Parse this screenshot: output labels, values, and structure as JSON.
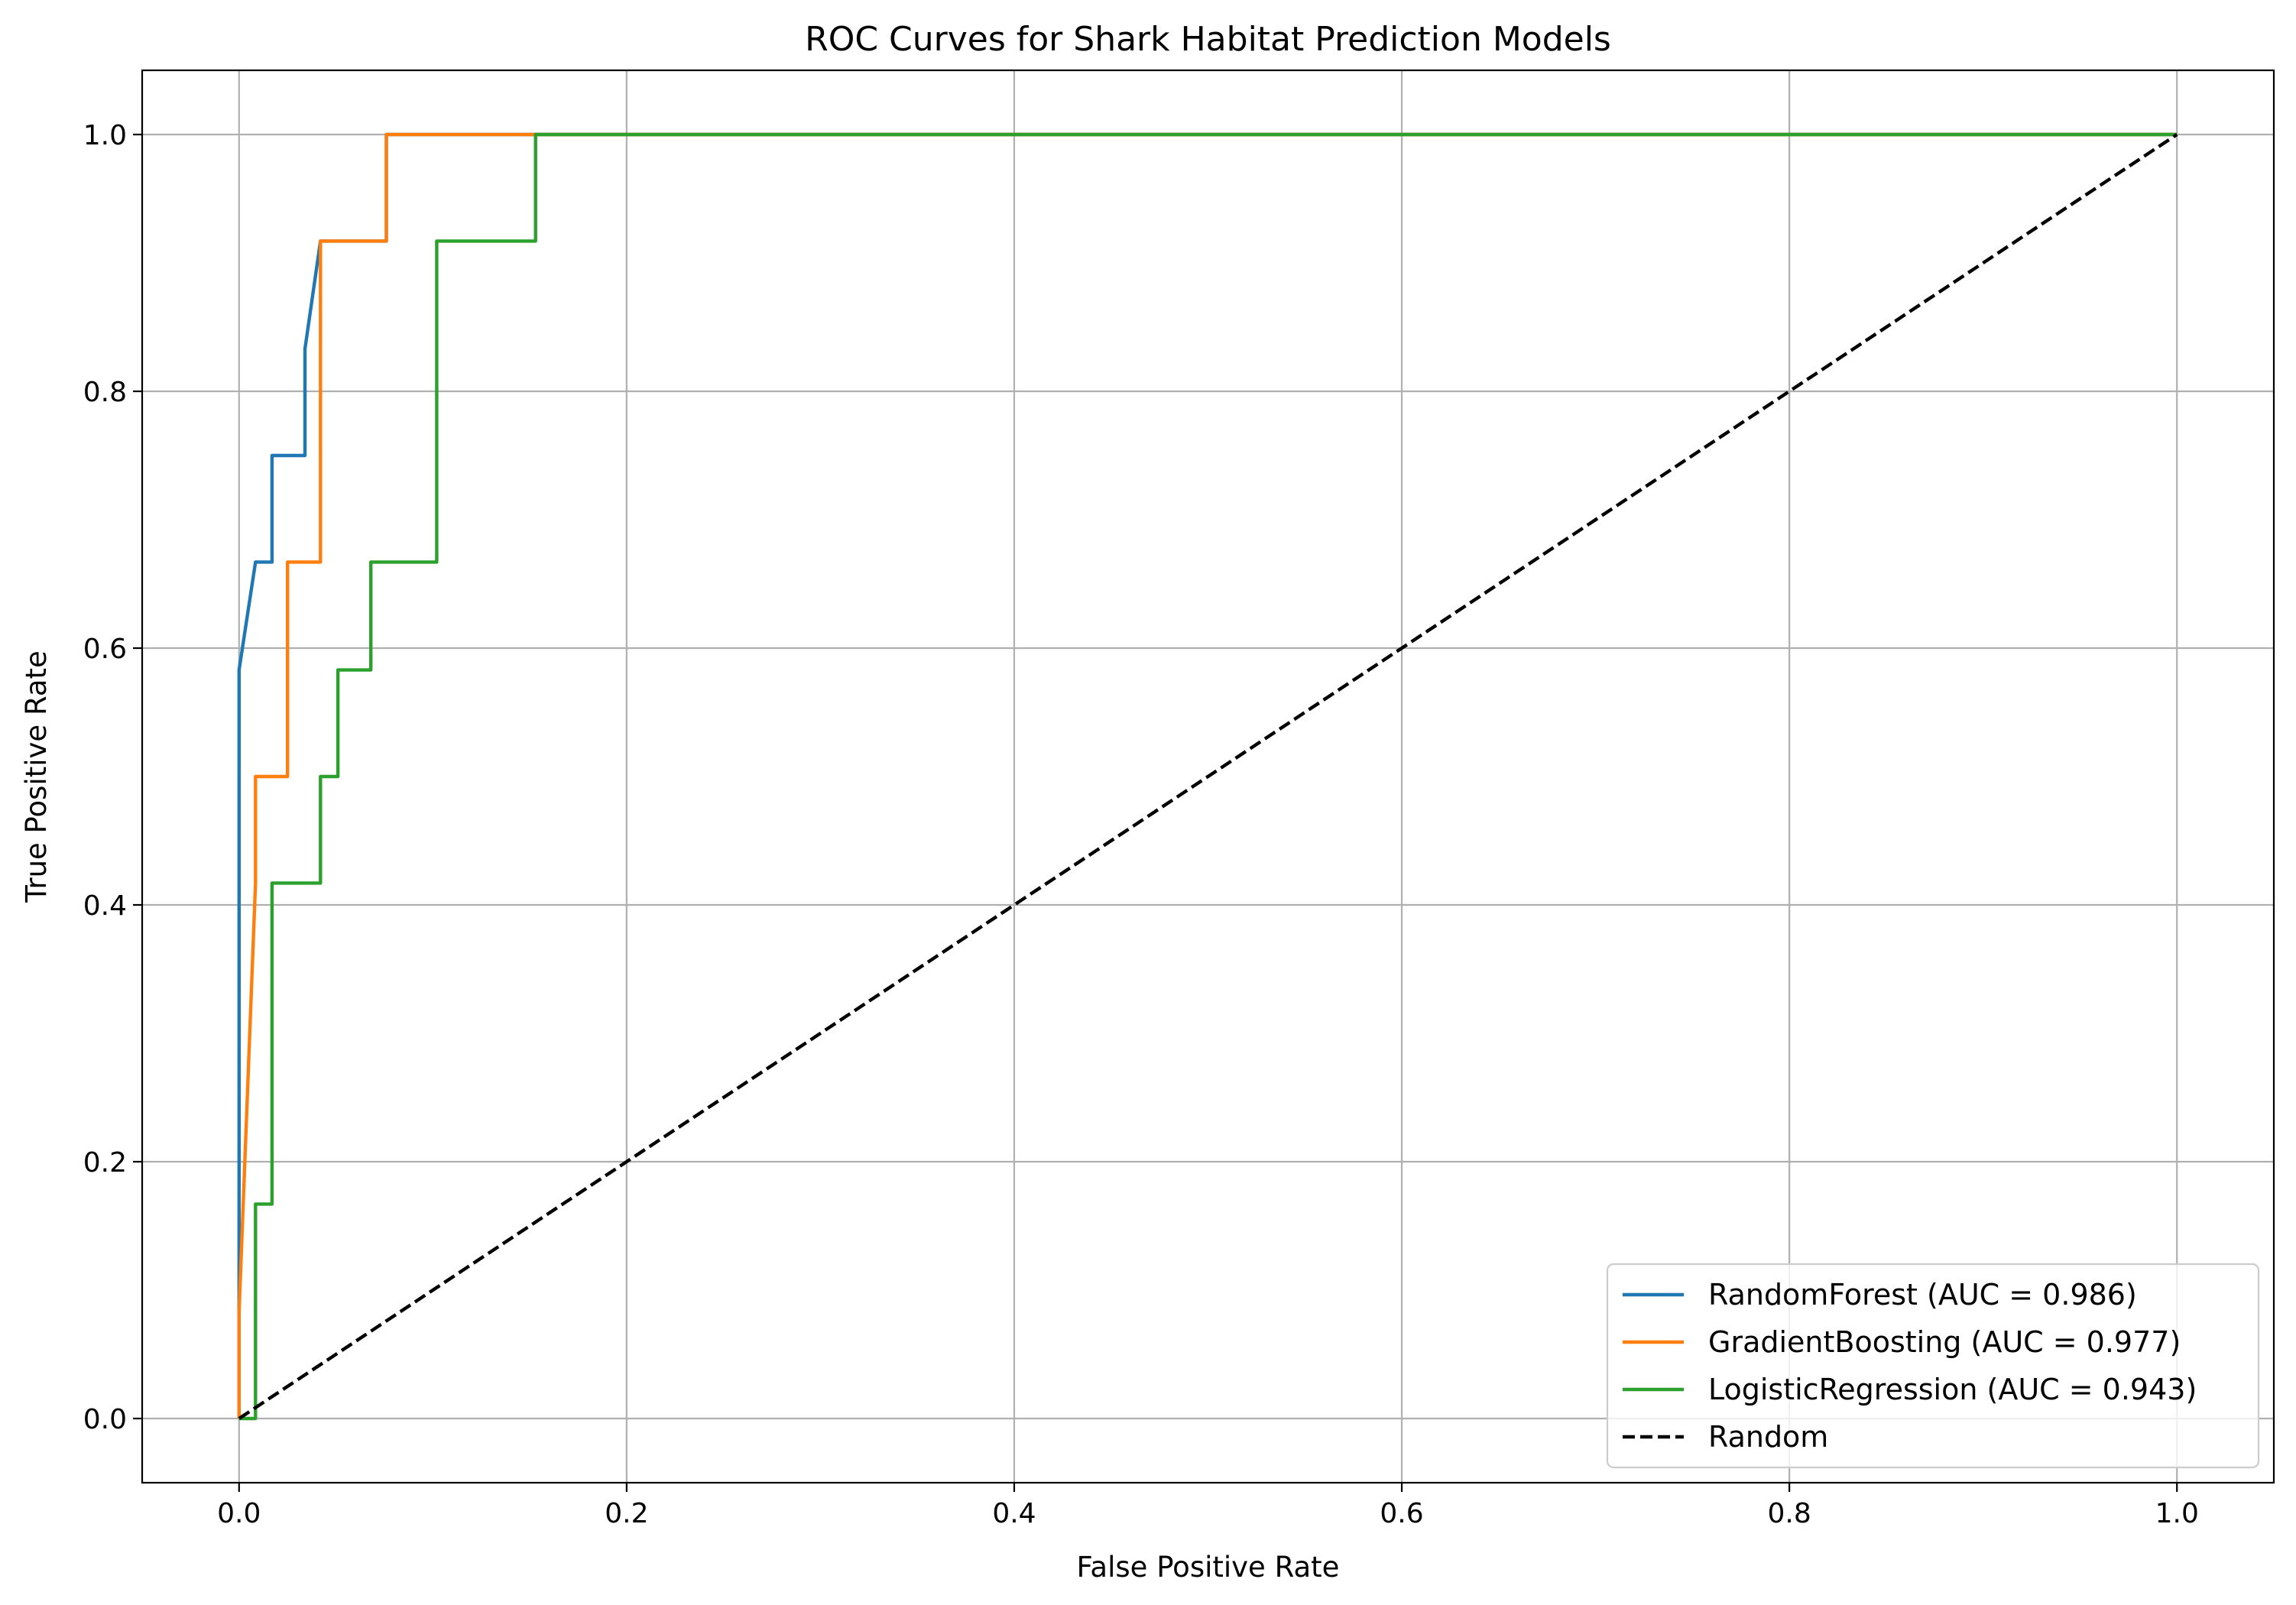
{
  "chart_data": {
    "type": "line",
    "title": "ROC Curves for Shark Habitat Prediction Models",
    "xlabel": "False Positive Rate",
    "ylabel": "True Positive Rate",
    "xlim": [
      -0.05,
      1.05
    ],
    "ylim": [
      -0.05,
      1.05
    ],
    "xticks": [
      0.0,
      0.2,
      0.4,
      0.6,
      0.8,
      1.0
    ],
    "yticks": [
      0.0,
      0.2,
      0.4,
      0.6,
      0.8,
      1.0
    ],
    "xtick_labels": [
      "0.0",
      "0.2",
      "0.4",
      "0.6",
      "0.8",
      "1.0"
    ],
    "ytick_labels": [
      "0.0",
      "0.2",
      "0.4",
      "0.6",
      "0.8",
      "1.0"
    ],
    "grid": true,
    "legend_position": "lower-right",
    "series": [
      {
        "name": "RandomForest (AUC = 0.986)",
        "color": "#1f77b4",
        "dash": "solid",
        "x": [
          0.0,
          0.0,
          0.0,
          0.0085,
          0.017,
          0.017,
          0.034,
          0.034,
          0.042,
          0.042,
          0.076,
          0.076,
          0.153,
          1.0
        ],
        "y": [
          0.0,
          0.083,
          0.583,
          0.667,
          0.667,
          0.75,
          0.75,
          0.833,
          0.917,
          0.917,
          0.917,
          1.0,
          1.0,
          1.0
        ]
      },
      {
        "name": "GradientBoosting (AUC = 0.977)",
        "color": "#ff7f0e",
        "dash": "solid",
        "x": [
          0.0,
          0.0,
          0.0085,
          0.0085,
          0.025,
          0.025,
          0.042,
          0.042,
          0.076,
          0.076,
          1.0
        ],
        "y": [
          0.0,
          0.083,
          0.417,
          0.5,
          0.5,
          0.667,
          0.667,
          0.917,
          0.917,
          1.0,
          1.0
        ]
      },
      {
        "name": "LogisticRegression (AUC = 0.943)",
        "color": "#2ca02c",
        "dash": "solid",
        "x": [
          0.0,
          0.0085,
          0.0085,
          0.017,
          0.017,
          0.042,
          0.042,
          0.051,
          0.051,
          0.068,
          0.068,
          0.102,
          0.102,
          0.153,
          0.153,
          1.0
        ],
        "y": [
          0.0,
          0.0,
          0.167,
          0.167,
          0.417,
          0.417,
          0.5,
          0.5,
          0.583,
          0.583,
          0.667,
          0.667,
          0.917,
          0.917,
          1.0,
          1.0
        ]
      },
      {
        "name": "Random",
        "color": "#000000",
        "dash": "dashed",
        "x": [
          0.0,
          1.0
        ],
        "y": [
          0.0,
          1.0
        ]
      }
    ]
  }
}
